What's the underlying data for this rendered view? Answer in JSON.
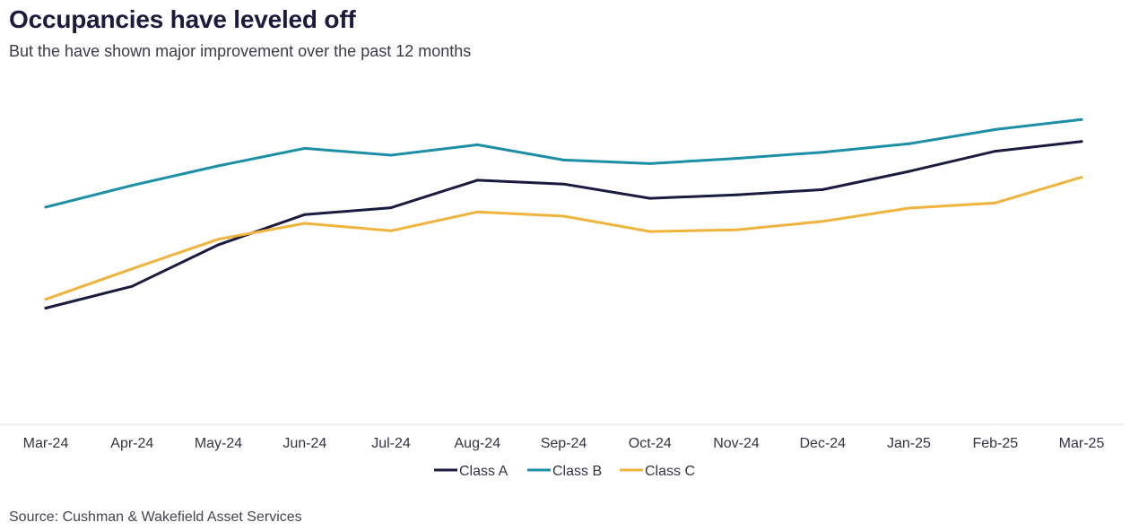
{
  "title": "Occupancies have leveled off",
  "subtitle": "But the have shown major improvement over the past 12 months",
  "source": "Source: Cushman & Wakefield Asset Services",
  "chart_data": {
    "type": "line",
    "title": "Occupancies have leveled off",
    "subtitle": "But the have shown major improvement over the past 12 months",
    "xlabel": "",
    "ylabel": "",
    "ylim": [
      0,
      100
    ],
    "grid": false,
    "legend_position": "bottom-center",
    "categories": [
      "Mar-24",
      "Apr-24",
      "May-24",
      "Jun-24",
      "Jul-24",
      "Aug-24",
      "Sep-24",
      "Oct-24",
      "Nov-24",
      "Dec-24",
      "Jan-25",
      "Feb-25",
      "Mar-25"
    ],
    "series": [
      {
        "name": "Class A",
        "color": "#1b1a3f",
        "values": [
          35.5,
          42.2,
          55.0,
          64.3,
          66.4,
          74.9,
          73.7,
          69.3,
          70.4,
          72.0,
          77.6,
          83.8,
          86.8
        ]
      },
      {
        "name": "Class B",
        "color": "#1b8fa6",
        "values": [
          66.6,
          73.3,
          79.3,
          84.7,
          82.6,
          85.8,
          81.1,
          80.0,
          81.6,
          83.5,
          86.1,
          90.5,
          93.6
        ]
      },
      {
        "name": "Class C",
        "color": "#f0b43c",
        "values": [
          38.2,
          47.6,
          56.7,
          61.6,
          59.3,
          65.1,
          63.8,
          59.1,
          59.6,
          62.2,
          66.3,
          67.9,
          75.8
        ]
      }
    ]
  }
}
